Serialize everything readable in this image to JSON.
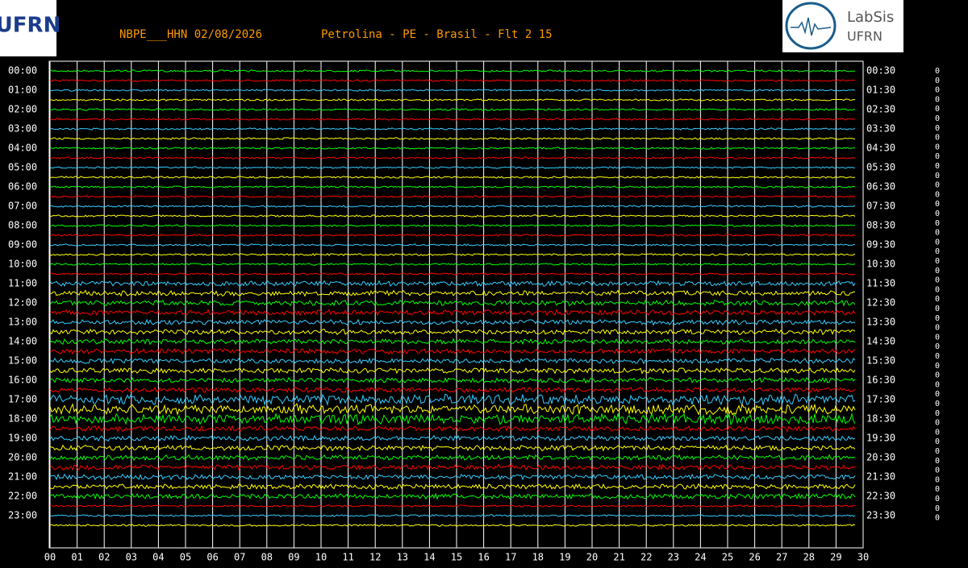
{
  "header": {
    "logo_left": "UFRN",
    "station": "NBPE___HHN 02/08/2026",
    "location": "Petrolina - PE - Brasil - Flt 2 15",
    "logo_right_top": "LabSis",
    "logo_right_bottom": "UFRN"
  },
  "left_labels": [
    "00:00",
    "01:00",
    "02:00",
    "03:00",
    "04:00",
    "05:00",
    "06:00",
    "07:00",
    "08:00",
    "09:00",
    "10:00",
    "11:00",
    "12:00",
    "13:00",
    "14:00",
    "15:00",
    "16:00",
    "17:00",
    "18:00",
    "19:00",
    "20:00",
    "21:00",
    "22:00",
    "23:00"
  ],
  "right_labels": [
    "00:30",
    "01:30",
    "02:30",
    "03:30",
    "04:30",
    "05:30",
    "06:30",
    "07:30",
    "08:30",
    "09:30",
    "10:30",
    "11:30",
    "12:30",
    "13:30",
    "14:30",
    "15:30",
    "16:30",
    "17:30",
    "18:30",
    "19:30",
    "20:30",
    "21:30",
    "22:30",
    "23:30"
  ],
  "minute_labels": [
    "00",
    "01",
    "02",
    "03",
    "04",
    "05",
    "06",
    "07",
    "08",
    "09",
    "10",
    "11",
    "12",
    "13",
    "14",
    "15",
    "16",
    "17",
    "18",
    "19",
    "20",
    "21",
    "22",
    "23",
    "24",
    "25",
    "26",
    "27",
    "28",
    "29",
    "30"
  ],
  "right_counts": [
    0,
    0,
    0,
    0,
    0,
    0,
    0,
    0,
    0,
    0,
    0,
    0,
    0,
    0,
    0,
    0,
    0,
    0,
    0,
    0,
    0,
    0,
    0,
    0,
    0,
    0,
    0,
    0,
    0,
    0,
    0,
    0,
    0,
    0,
    0,
    0,
    0,
    0,
    0,
    0,
    0,
    0,
    0,
    0,
    0,
    0,
    0,
    0
  ]
}
